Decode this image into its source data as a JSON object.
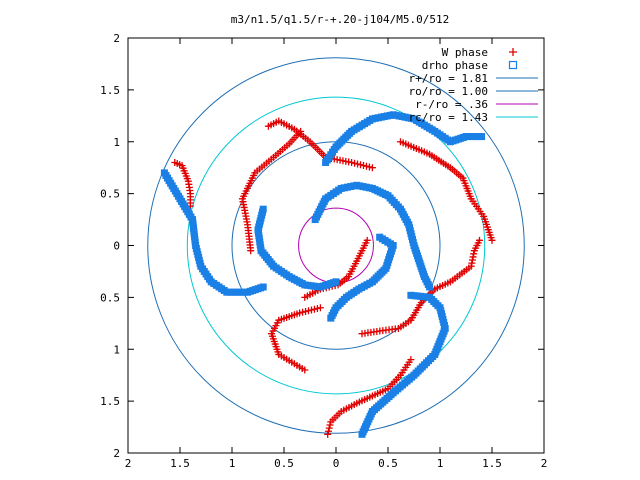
{
  "chart_data": {
    "type": "scatter",
    "title": "m3/n1.5/q1.5/r-+.20-j104/M5.0/512",
    "xlabel": "",
    "ylabel": "",
    "xlim": [
      -2,
      2
    ],
    "ylim": [
      -2,
      2
    ],
    "grid": false,
    "legend_position": "top-right",
    "x_tick_labels": [
      "2",
      "1.5",
      "1",
      "0.5",
      "0",
      "0.5",
      "1",
      "1.5",
      "2"
    ],
    "x_tick_values": [
      -2,
      -1.5,
      -1,
      -0.5,
      0,
      0.5,
      1,
      1.5,
      2
    ],
    "y_tick_labels": [
      "2",
      "1.5",
      "1",
      "0.5",
      "0",
      "0.5",
      "1",
      "1.5",
      "2"
    ],
    "y_tick_values": [
      2,
      1.5,
      1,
      0.5,
      0,
      -0.5,
      -1,
      -1.5,
      -2
    ],
    "circles": [
      {
        "name": "r+/ro = 1.81",
        "radius": 1.81,
        "color": "#1f6fb4"
      },
      {
        "name": "ro/ro = 1.00",
        "radius": 1.0,
        "color": "#1f6fb4"
      },
      {
        "name": "r-/ro =  .36",
        "radius": 0.36,
        "color": "#b400b4"
      },
      {
        "name": "rc/ro = 1.43",
        "radius": 1.43,
        "color": "#00c8d2"
      }
    ],
    "series": [
      {
        "name": "W phase",
        "marker": "+",
        "color": "#e00000",
        "arms": [
          [
            [
              -0.34,
              1.1
            ],
            [
              -0.45,
              0.98
            ],
            [
              -0.6,
              0.85
            ],
            [
              -0.78,
              0.7
            ],
            [
              -0.9,
              0.45
            ],
            [
              -0.85,
              0.2
            ],
            [
              -0.82,
              -0.05
            ]
          ],
          [
            [
              -0.3,
              -0.5
            ],
            [
              -0.15,
              -0.42
            ],
            [
              0.02,
              -0.38
            ],
            [
              0.12,
              -0.3
            ],
            [
              0.2,
              -0.15
            ],
            [
              0.3,
              0.05
            ]
          ],
          [
            [
              0.25,
              -0.85
            ],
            [
              0.45,
              -0.82
            ],
            [
              0.6,
              -0.8
            ],
            [
              0.72,
              -0.72
            ],
            [
              0.82,
              -0.55
            ],
            [
              0.95,
              -0.42
            ],
            [
              1.1,
              -0.35
            ],
            [
              1.3,
              -0.2
            ],
            [
              1.33,
              -0.05
            ],
            [
              1.38,
              0.05
            ]
          ],
          [
            [
              0.62,
              1.0
            ],
            [
              0.9,
              0.88
            ],
            [
              1.1,
              0.75
            ],
            [
              1.22,
              0.65
            ],
            [
              1.3,
              0.45
            ],
            [
              1.42,
              0.28
            ],
            [
              1.5,
              0.05
            ]
          ],
          [
            [
              -1.55,
              0.8
            ],
            [
              -1.48,
              0.77
            ],
            [
              -1.42,
              0.62
            ],
            [
              -1.4,
              0.5
            ],
            [
              -1.4,
              0.38
            ]
          ],
          [
            [
              -0.08,
              -1.82
            ],
            [
              -0.05,
              -1.7
            ],
            [
              0.05,
              -1.6
            ],
            [
              0.2,
              -1.52
            ],
            [
              0.35,
              -1.45
            ],
            [
              0.5,
              -1.38
            ],
            [
              0.62,
              -1.25
            ],
            [
              0.72,
              -1.1
            ]
          ],
          [
            [
              -0.65,
              1.15
            ],
            [
              -0.55,
              1.2
            ],
            [
              -0.4,
              1.12
            ],
            [
              -0.25,
              1.0
            ],
            [
              -0.1,
              0.85
            ],
            [
              0.15,
              0.8
            ],
            [
              0.35,
              0.75
            ]
          ],
          [
            [
              -0.15,
              -0.6
            ],
            [
              -0.35,
              -0.65
            ],
            [
              -0.55,
              -0.72
            ],
            [
              -0.62,
              -0.85
            ],
            [
              -0.55,
              -1.05
            ],
            [
              -0.3,
              -1.2
            ]
          ]
        ]
      },
      {
        "name": "drho phase",
        "marker": "square",
        "color": "#1a80e6",
        "arms": [
          [
            [
              -1.65,
              0.7
            ],
            [
              -1.5,
              0.45
            ],
            [
              -1.38,
              0.25
            ],
            [
              -1.35,
              0.0
            ],
            [
              -1.3,
              -0.2
            ],
            [
              -1.2,
              -0.35
            ],
            [
              -1.05,
              -0.45
            ],
            [
              -0.85,
              -0.45
            ],
            [
              -0.7,
              -0.4
            ]
          ],
          [
            [
              -0.7,
              0.35
            ],
            [
              -0.75,
              0.15
            ],
            [
              -0.72,
              -0.05
            ],
            [
              -0.6,
              -0.2
            ],
            [
              -0.45,
              -0.3
            ],
            [
              -0.3,
              -0.38
            ],
            [
              -0.15,
              -0.4
            ],
            [
              0.0,
              -0.35
            ]
          ],
          [
            [
              -0.05,
              -0.7
            ],
            [
              0.0,
              -0.6
            ],
            [
              0.1,
              -0.5
            ],
            [
              0.22,
              -0.42
            ],
            [
              0.35,
              -0.35
            ],
            [
              0.48,
              -0.22
            ],
            [
              0.55,
              0.0
            ],
            [
              0.42,
              0.08
            ]
          ],
          [
            [
              -0.2,
              0.25
            ],
            [
              -0.1,
              0.45
            ],
            [
              0.05,
              0.55
            ],
            [
              0.2,
              0.58
            ],
            [
              0.35,
              0.55
            ],
            [
              0.5,
              0.48
            ],
            [
              0.62,
              0.35
            ],
            [
              0.7,
              0.2
            ],
            [
              0.75,
              0.0
            ],
            [
              0.8,
              -0.15
            ],
            [
              0.85,
              -0.3
            ],
            [
              0.9,
              -0.4
            ]
          ],
          [
            [
              -0.1,
              0.8
            ],
            [
              0.0,
              0.95
            ],
            [
              0.15,
              1.1
            ],
            [
              0.35,
              1.22
            ],
            [
              0.55,
              1.26
            ],
            [
              0.75,
              1.22
            ],
            [
              0.95,
              1.1
            ],
            [
              1.1,
              1.0
            ],
            [
              1.25,
              1.05
            ],
            [
              1.4,
              1.05
            ]
          ],
          [
            [
              0.25,
              -1.82
            ],
            [
              0.35,
              -1.6
            ],
            [
              0.55,
              -1.42
            ],
            [
              0.75,
              -1.25
            ],
            [
              0.95,
              -1.05
            ],
            [
              1.05,
              -0.8
            ],
            [
              1.0,
              -0.6
            ],
            [
              0.9,
              -0.5
            ],
            [
              0.72,
              -0.48
            ]
          ]
        ]
      }
    ]
  }
}
